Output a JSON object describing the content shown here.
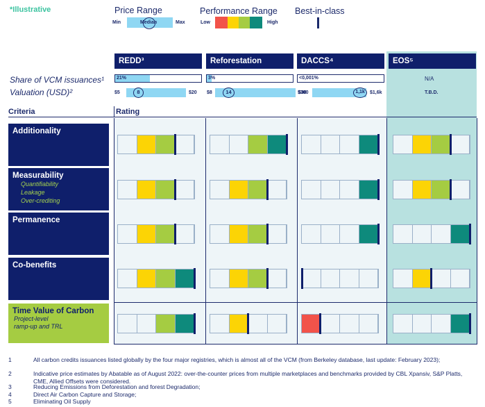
{
  "illustrative": "*Illustrative",
  "legend": {
    "price_range": {
      "title": "Price Range",
      "min": "Min",
      "median": "Median",
      "max": "Max"
    },
    "performance_range": {
      "title": "Performance Range",
      "low": "Low",
      "high": "High"
    },
    "best_in_class": {
      "title": "Best-in-class"
    }
  },
  "columns": [
    {
      "name": "REDD³",
      "share": "21%",
      "share_fraction": 0.4,
      "val_min": "$5",
      "val_median": "8",
      "val_max": "$20"
    },
    {
      "name": "Reforestation",
      "share": "3%",
      "share_fraction": 0.06,
      "val_min": "$8",
      "val_median": "14",
      "val_max": "$30"
    },
    {
      "name": "DACCS⁴",
      "share": "<0,001%",
      "share_fraction": 0.0,
      "val_min": "$300",
      "val_median": "1,1k",
      "val_max": "$1,6k"
    },
    {
      "name": "EOS⁵",
      "share": "N/A",
      "valuation": "T.B.D."
    }
  ],
  "rows_labels": {
    "share": "Share of VCM issuances¹",
    "valuation": "Valuation (USD)²"
  },
  "criteria_header": "Criteria",
  "rating_header": "Rating",
  "criteria": [
    {
      "name": "Additionality",
      "sub": []
    },
    {
      "name": "Measurability",
      "sub": [
        "Quantifiability",
        "Leakage",
        "Over-crediting"
      ]
    },
    {
      "name": "Permanence",
      "sub": []
    },
    {
      "name": "Co-benefits",
      "sub": []
    },
    {
      "name": "Time Value of Carbon",
      "sub": [
        "Project-level",
        "ramp-up and TRL"
      ]
    }
  ],
  "ratings": [
    [
      [
        null,
        "#fcd405",
        "#a5cc42",
        null
      ],
      [
        null,
        null,
        "#a5cc42",
        "#0e8a7c"
      ],
      [
        null,
        null,
        null,
        "#0e8a7c"
      ],
      [
        null,
        "#fcd405",
        "#a5cc42",
        null
      ]
    ],
    [
      [
        null,
        "#fcd405",
        "#a5cc42",
        null
      ],
      [
        null,
        "#fcd405",
        "#a5cc42",
        null
      ],
      [
        null,
        null,
        null,
        "#0e8a7c"
      ],
      [
        null,
        "#fcd405",
        "#a5cc42",
        null
      ]
    ],
    [
      [
        null,
        "#fcd405",
        "#a5cc42",
        null
      ],
      [
        null,
        "#fcd405",
        "#a5cc42",
        null
      ],
      [
        null,
        null,
        null,
        "#0e8a7c"
      ],
      [
        null,
        null,
        null,
        "#0e8a7c"
      ]
    ],
    [
      [
        null,
        "#fcd405",
        "#a5cc42",
        "#0e8a7c"
      ],
      [
        null,
        "#fcd405",
        "#a5cc42",
        null
      ],
      [
        null,
        null,
        null,
        null
      ],
      [
        null,
        "#fcd405",
        null,
        null
      ]
    ],
    [
      [
        null,
        null,
        "#a5cc42",
        "#0e8a7c"
      ],
      [
        null,
        "#fcd405",
        null,
        null
      ],
      [
        "#f2534a",
        null,
        null,
        null
      ],
      [
        null,
        null,
        null,
        "#0e8a7c"
      ]
    ]
  ],
  "best_in_class_index": [
    [
      2,
      3,
      3,
      2
    ],
    [
      2,
      2,
      3,
      2
    ],
    [
      2,
      2,
      3,
      3
    ],
    [
      3,
      2,
      0,
      1
    ],
    [
      3,
      1,
      0,
      3
    ]
  ],
  "footnotes": [
    {
      "num": "1",
      "text": "All carbon credits issuances listed globally by the four major registries, which is almost all of the VCM (from Berkeley database, last update: February 2023);"
    },
    {
      "num": "2",
      "text": "Indicative price estimates by Abatable as of August 2022: over-the-counter prices from multiple marketplaces and benchmarks provided by CBL Xpansiv, S&P Platts, CME, Allied Offsets were considered."
    },
    {
      "num": "3",
      "text": "Reducing Emissions from Deforestation and forest Degradation;"
    },
    {
      "num": "4",
      "text": "Direct Air Carbon Capture and Storage;"
    },
    {
      "num": "5",
      "text": "Eliminating Oil Supply"
    }
  ],
  "colors": {
    "navy": "#0f1f6b",
    "lightblue": "#8fd7f3",
    "low": "#f2534a",
    "yellow": "#fcd405",
    "green": "#a5cc42",
    "high": "#0e8a7c",
    "eos_bg": "#b8e1e0"
  }
}
